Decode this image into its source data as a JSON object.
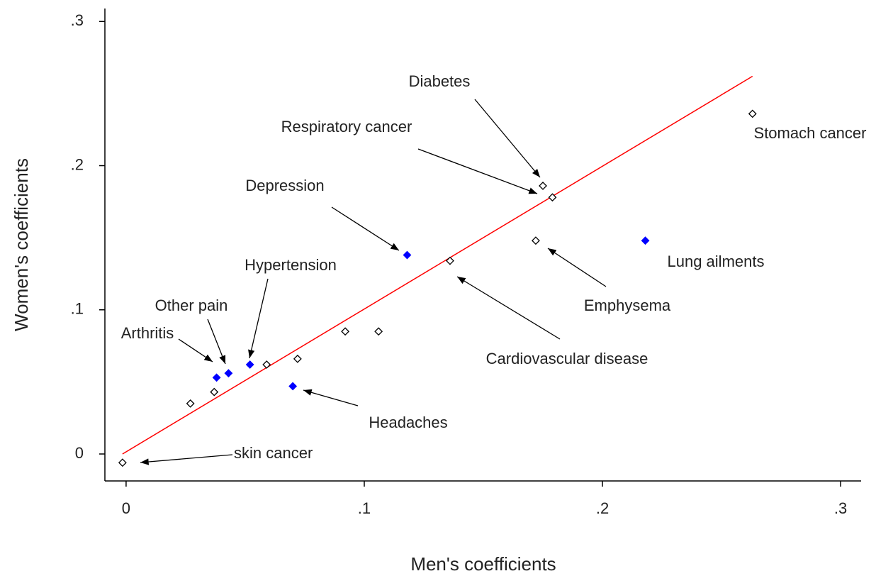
{
  "chart_data": {
    "type": "scatter",
    "xlabel": "Men's coefficients",
    "ylabel": "Women's coefficients",
    "xlim": [
      -0.0089,
      0.3086
    ],
    "ylim": [
      -0.0187,
      0.309
    ],
    "xticks": [
      0,
      {
        "value": 0.1,
        "label": ".1"
      },
      {
        "value": 0.2,
        "label": ".2"
      },
      {
        "value": 0.3,
        "label": ".3"
      }
    ],
    "yticks": [
      0,
      {
        "value": 0.1,
        "label": ".1"
      },
      {
        "value": 0.2,
        "label": ".2"
      },
      {
        "value": 0.3,
        "label": ".3"
      }
    ],
    "series": [
      {
        "color": "#000000",
        "filled": false,
        "x": [
          -0.0015,
          0.027,
          0.037,
          0.059,
          0.072,
          0.092,
          0.106,
          0.136,
          0.172,
          0.179,
          0.175,
          0.263
        ],
        "values": [
          -0.006,
          0.035,
          0.043,
          0.062,
          0.066,
          0.085,
          0.085,
          0.134,
          0.148,
          0.178,
          0.186,
          0.236
        ],
        "labels": [
          "skin cancer",
          null,
          null,
          null,
          null,
          null,
          null,
          "Cardiovascular disease",
          "Emphysema",
          "Respiratory cancer",
          "Diabetes",
          "Stomach cancer"
        ]
      },
      {
        "color": "#0000ff",
        "filled": true,
        "x": [
          0.038,
          0.043,
          0.052,
          0.07,
          0.118,
          0.218
        ],
        "values": [
          0.053,
          0.056,
          0.062,
          0.047,
          0.138,
          0.148
        ],
        "labels": [
          "Arthritis",
          "Other pain",
          "Hypertension",
          "Headaches",
          "Depression",
          "Lung ailments"
        ]
      }
    ],
    "fit_line": {
      "color": "#ff0000",
      "x": [
        -0.0015,
        0.263
      ],
      "y": [
        0.0,
        0.262
      ]
    }
  }
}
